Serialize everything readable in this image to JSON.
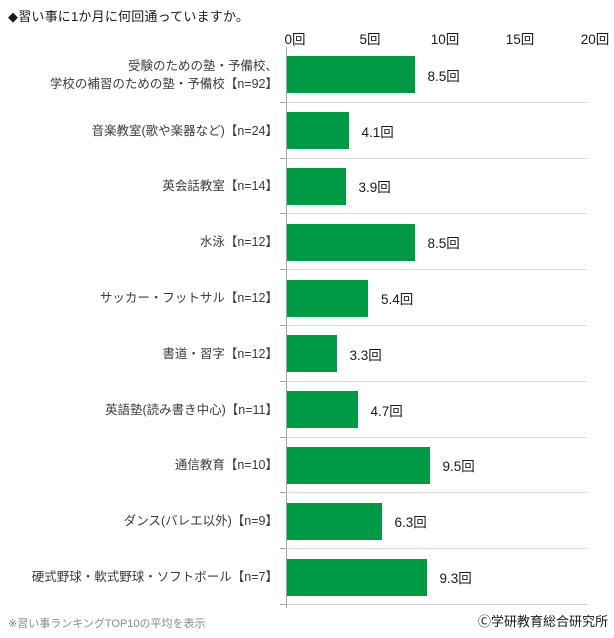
{
  "title": "◆習い事に1か月に何回通っていますか。",
  "footnote": "※習い事ランキングTOP10の平均を表示",
  "copyright": "Ⓒ学研教育総合研究所",
  "colors": {
    "bar": "#009944",
    "axis_line": "#a6a6a6",
    "gridline": "#d9d9d9",
    "category_text": "#3f3a39",
    "value_text": "#1a1a1a",
    "footnote_text": "#8a8a8a"
  },
  "chart_data": {
    "type": "bar",
    "orientation": "horizontal",
    "title": "◆習い事に1か月に何回通っていますか。",
    "xlabel": "",
    "ylabel": "",
    "unit": "回",
    "xlim": [
      0,
      20
    ],
    "x_tick_labels": [
      "0回",
      "5回",
      "10回",
      "15回",
      "20回"
    ],
    "x_tick_values": [
      0,
      5,
      10,
      15,
      20
    ],
    "grid": "horizontal-separators-only",
    "legend": "none",
    "categories": [
      "受験のための塾・予備校、\n学校の補習のための塾・予備校【n=92】",
      "音楽教室(歌や楽器など)【n=24】",
      "英会話教室【n=14】",
      "水泳【n=12】",
      "サッカー・フットサル【n=12】",
      "書道・習字【n=12】",
      "英語塾(読み書き中心)【n=11】",
      "通信教育【n=10】",
      "ダンス(バレエ以外)【n=9】",
      "硬式野球・軟式野球・ソフトボール【n=7】"
    ],
    "values": [
      8.5,
      4.1,
      3.9,
      8.5,
      5.4,
      3.3,
      4.7,
      9.5,
      6.3,
      9.3
    ],
    "value_labels": [
      "8.5回",
      "4.1回",
      "3.9回",
      "8.5回",
      "5.4回",
      "3.3回",
      "4.7回",
      "9.5回",
      "6.3回",
      "9.3回"
    ]
  }
}
